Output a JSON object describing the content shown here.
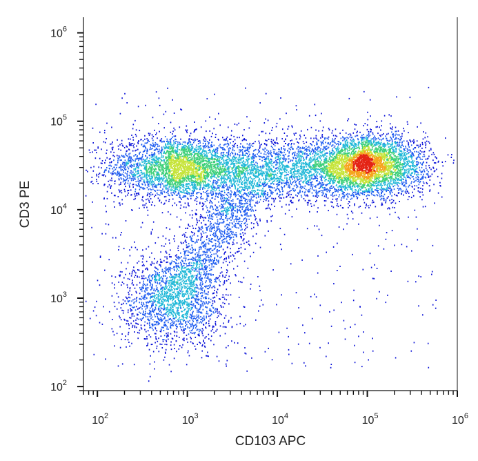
{
  "chart_data": {
    "type": "scatter",
    "subtype": "flow-cytometry-density-dot-plot",
    "title": "",
    "xlabel": "CD103 APC",
    "ylabel": "CD3 PE",
    "x_scale": "log",
    "y_scale": "log",
    "xlim": [
      70,
      1000000
    ],
    "ylim": [
      90,
      1500000
    ],
    "x_ticks": [
      {
        "value": 100,
        "base": "10",
        "exp": "2"
      },
      {
        "value": 1000,
        "base": "10",
        "exp": "3"
      },
      {
        "value": 10000,
        "base": "10",
        "exp": "4"
      },
      {
        "value": 100000,
        "base": "10",
        "exp": "5"
      },
      {
        "value": 1000000,
        "base": "10",
        "exp": "6"
      }
    ],
    "y_ticks": [
      {
        "value": 100,
        "base": "10",
        "exp": "2"
      },
      {
        "value": 1000,
        "base": "10",
        "exp": "3"
      },
      {
        "value": 10000,
        "base": "10",
        "exp": "4"
      },
      {
        "value": 100000,
        "base": "10",
        "exp": "5"
      },
      {
        "value": 1000000,
        "base": "10",
        "exp": "6"
      }
    ],
    "grid": false,
    "legend": "none",
    "density_colormap": [
      "#0a12d8",
      "#1e5cf0",
      "#21b8d8",
      "#3fd07a",
      "#c6e43a",
      "#f6a41c",
      "#e42414"
    ],
    "populations": [
      {
        "label": "CD3+ CD103- cluster",
        "center_x": 600,
        "center_y": 30000,
        "relative_density": 0.45
      },
      {
        "label": "CD3+ CD103+ cluster",
        "center_x": 110000,
        "center_y": 32000,
        "relative_density": 1.0
      },
      {
        "label": "CD3+ intermediate bridge",
        "center_x": 8000,
        "center_y": 30000,
        "relative_density": 0.25
      },
      {
        "label": "CD3- low cluster",
        "center_x": 700,
        "center_y": 900,
        "relative_density": 0.2
      }
    ]
  }
}
